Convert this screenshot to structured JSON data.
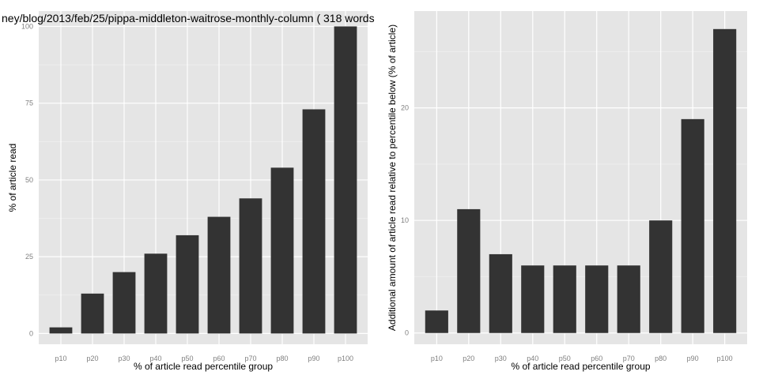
{
  "title": "ney/blog/2013/feb/25/pippa-middleton-waitrose-monthly-column ( 318 words",
  "colors": {
    "panel": "#e5e5e5",
    "grid": "#ffffff",
    "bar": "#333333",
    "tick_text": "#7f7f7f"
  },
  "chart_data": [
    {
      "type": "bar",
      "categories": [
        "p10",
        "p20",
        "p30",
        "p40",
        "p50",
        "p60",
        "p70",
        "p80",
        "p90",
        "p100"
      ],
      "values": [
        2,
        13,
        20,
        26,
        32,
        38,
        44,
        54,
        73,
        100
      ],
      "xlabel": "% of article read percentile group",
      "ylabel": "% of article read",
      "ylim": [
        -3.5,
        105
      ],
      "yticks": [
        0,
        25,
        50,
        75,
        100
      ],
      "grid": true
    },
    {
      "type": "bar",
      "categories": [
        "p10",
        "p20",
        "p30",
        "p40",
        "p50",
        "p60",
        "p70",
        "p80",
        "p90",
        "p100"
      ],
      "values": [
        2,
        11,
        7,
        6,
        6,
        6,
        6,
        10,
        19,
        27
      ],
      "xlabel": "% of article read percentile group",
      "ylabel": "Additional amount of article read relative to percentile below (% of article)",
      "ylim": [
        -1,
        28.6
      ],
      "yticks": [
        0,
        10,
        20
      ],
      "grid": true
    }
  ]
}
